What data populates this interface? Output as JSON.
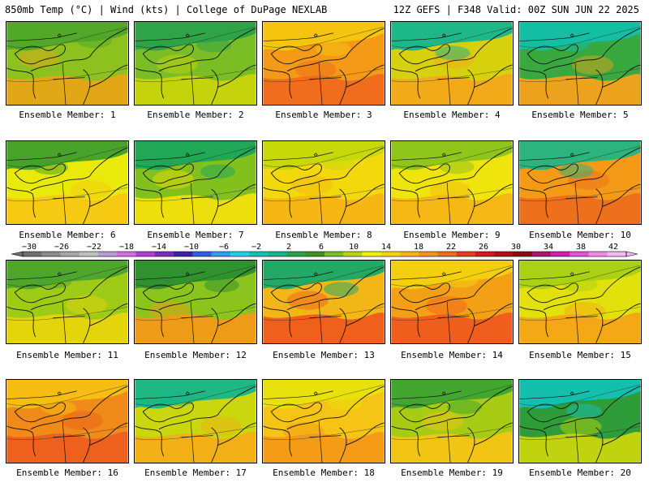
{
  "header": {
    "left": "850mb Temp (°C) | Wind (kts) | College of DuPage NEXLAB",
    "right": "12Z GEFS | F348 Valid: 00Z SUN JUN 22 2025"
  },
  "panels": [
    {
      "label": "Ensemble Member: 1",
      "base": "#8dc21e",
      "warm": "#e6a517",
      "cold": "#4ea62a"
    },
    {
      "label": "Ensemble Member: 2",
      "base": "#7bbd25",
      "warm": "#c8d40a",
      "cold": "#2ba14a"
    },
    {
      "label": "Ensemble Member: 3",
      "base": "#f59a16",
      "warm": "#ee6a1c",
      "cold": "#f3c60f"
    },
    {
      "label": "Ensemble Member: 4",
      "base": "#d7d10d",
      "warm": "#f3a81a",
      "cold": "#13b58f"
    },
    {
      "label": "Ensemble Member: 5",
      "base": "#38a83f",
      "warm": "#f5a11a",
      "cold": "#12bfa9"
    },
    {
      "label": "Ensemble Member: 6",
      "base": "#eaea0a",
      "warm": "#f7c813",
      "cold": "#3e9f2c"
    },
    {
      "label": "Ensemble Member: 7",
      "base": "#82c01e",
      "warm": "#f2e00c",
      "cold": "#1aa65a"
    },
    {
      "label": "Ensemble Member: 8",
      "base": "#f3d90c",
      "warm": "#f5b516",
      "cold": "#c4d90a"
    },
    {
      "label": "Ensemble Member: 9",
      "base": "#efe40b",
      "warm": "#f5b516",
      "cold": "#8ac41c"
    },
    {
      "label": "Ensemble Member: 10",
      "base": "#f59a17",
      "warm": "#ed6d1c",
      "cold": "#21b484"
    },
    {
      "label": "Ensemble Member: 11",
      "base": "#9ecb16",
      "warm": "#e8d40c",
      "cold": "#4aa42d"
    },
    {
      "label": "Ensemble Member: 12",
      "base": "#8ac41c",
      "warm": "#f39a18",
      "cold": "#2b8f30"
    },
    {
      "label": "Ensemble Member: 13",
      "base": "#f3b617",
      "warm": "#ee5c1e",
      "cold": "#17a86a"
    },
    {
      "label": "Ensemble Member: 14",
      "base": "#f4a016",
      "warm": "#ef5b1d",
      "cold": "#f3d20d"
    },
    {
      "label": "Ensemble Member: 15",
      "base": "#e3e10b",
      "warm": "#f5a417",
      "cold": "#a8d015"
    },
    {
      "label": "Ensemble Member: 16",
      "base": "#f08a18",
      "warm": "#ec5e1d",
      "cold": "#f5c013"
    },
    {
      "label": "Ensemble Member: 17",
      "base": "#c9d70c",
      "warm": "#f4ae17",
      "cold": "#16b589"
    },
    {
      "label": "Ensemble Member: 18",
      "base": "#f5c414",
      "warm": "#f39a17",
      "cold": "#e8e30b"
    },
    {
      "label": "Ensemble Member: 19",
      "base": "#a8cc14",
      "warm": "#f5c414",
      "cold": "#3da330"
    },
    {
      "label": "Ensemble Member: 20",
      "base": "#2f9c3a",
      "warm": "#c8d60c",
      "cold": "#13c1b4"
    }
  ],
  "colorbar": {
    "labels": [
      "−30",
      "−26",
      "−22",
      "−18",
      "−14",
      "−10",
      "−6",
      "−2",
      "2",
      "6",
      "10",
      "14",
      "18",
      "22",
      "26",
      "30",
      "34",
      "38",
      "42"
    ],
    "colors": [
      "#707070",
      "#8c8c8c",
      "#a6a6a6",
      "#c0c0c0",
      "#b89bd9",
      "#d06ee0",
      "#b040d0",
      "#7a2bc0",
      "#3b1fb0",
      "#2d5de6",
      "#2aa0f0",
      "#1fd0e6",
      "#13c1b4",
      "#16b589",
      "#2ba14a",
      "#3e8f26",
      "#7bbd25",
      "#b8d411",
      "#f0f00a",
      "#f5d50d",
      "#f5b516",
      "#f39418",
      "#ef6d1c",
      "#e83a1f",
      "#d8161c",
      "#b50d16",
      "#8e0a10",
      "#b0136e",
      "#d21ea8",
      "#e94fd4",
      "#f08ae6",
      "#f5b8f0"
    ]
  }
}
